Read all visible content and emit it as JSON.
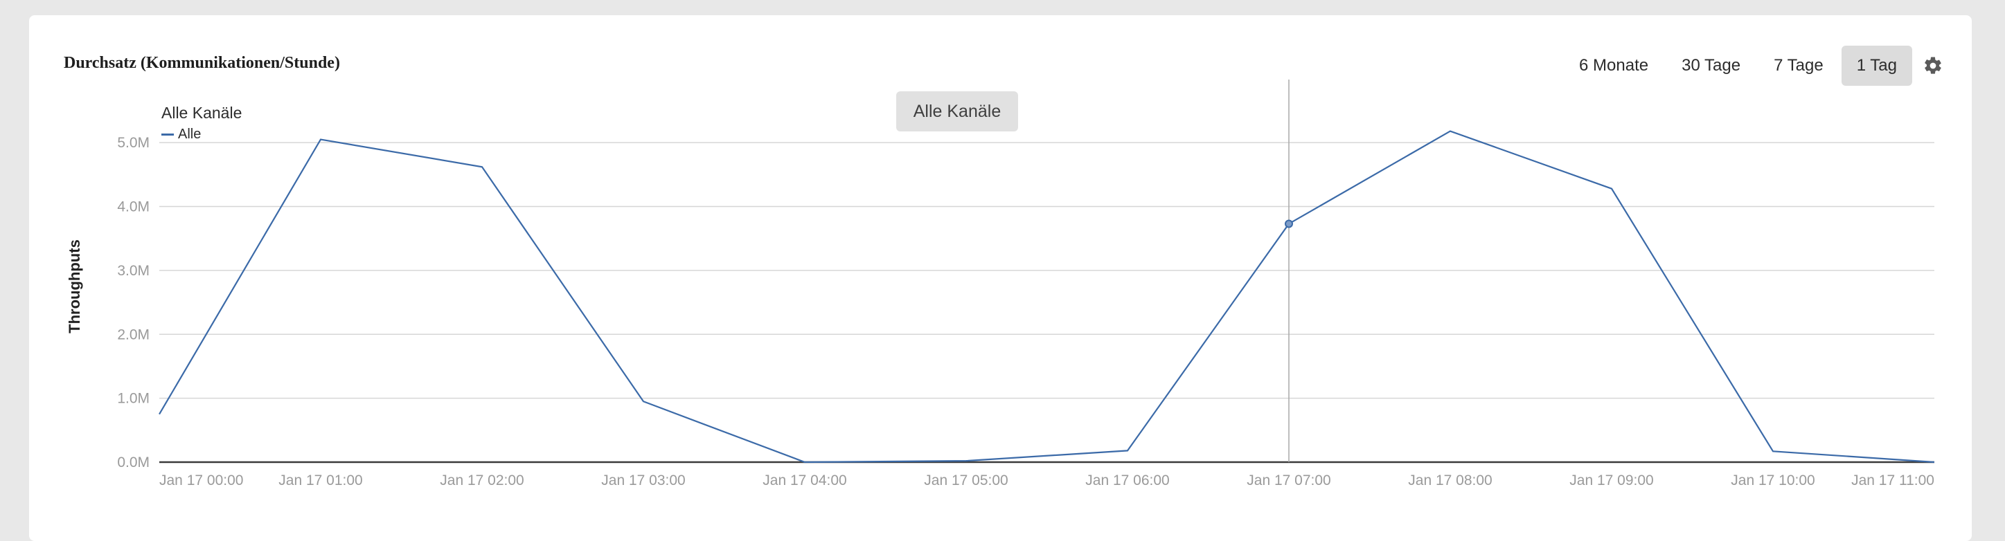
{
  "header": {
    "title": "Durchsatz (Kommunikationen/Stunde)",
    "ranges": [
      {
        "label": "6 Monate",
        "active": false
      },
      {
        "label": "30 Tage",
        "active": false
      },
      {
        "label": "7 Tage",
        "active": false
      },
      {
        "label": "1 Tag",
        "active": true
      }
    ],
    "settings_icon": "gear-icon"
  },
  "channel_button": "Alle Kanäle",
  "legend": {
    "title": "Alle Kanäle",
    "items": [
      {
        "label": "Alle",
        "color": "#3b6aa8"
      }
    ]
  },
  "chart_data": {
    "type": "line",
    "title": "Durchsatz (Kommunikationen/Stunde)",
    "ylabel": "Throughputs",
    "xlabel": "",
    "y_tick_labels": [
      "0.0M",
      "1.0M",
      "2.0M",
      "3.0M",
      "4.0M",
      "5.0M"
    ],
    "ylim": [
      0,
      5.5
    ],
    "x": [
      "Jan 17 00:00",
      "Jan 17 01:00",
      "Jan 17 02:00",
      "Jan 17 03:00",
      "Jan 17 04:00",
      "Jan 17 05:00",
      "Jan 17 06:00",
      "Jan 17 07:00",
      "Jan 17 08:00",
      "Jan 17 09:00",
      "Jan 17 10:00",
      "Jan 17 11:00"
    ],
    "series": [
      {
        "name": "Alle",
        "color": "#3b6aa8",
        "values": [
          0.75,
          5.05,
          4.62,
          0.95,
          0.0,
          0.02,
          0.18,
          3.73,
          5.18,
          4.28,
          0.17,
          0.0
        ]
      }
    ],
    "hover_marker_x": "Jan 17 07:00",
    "grid": true,
    "legend_position": "top-left"
  }
}
